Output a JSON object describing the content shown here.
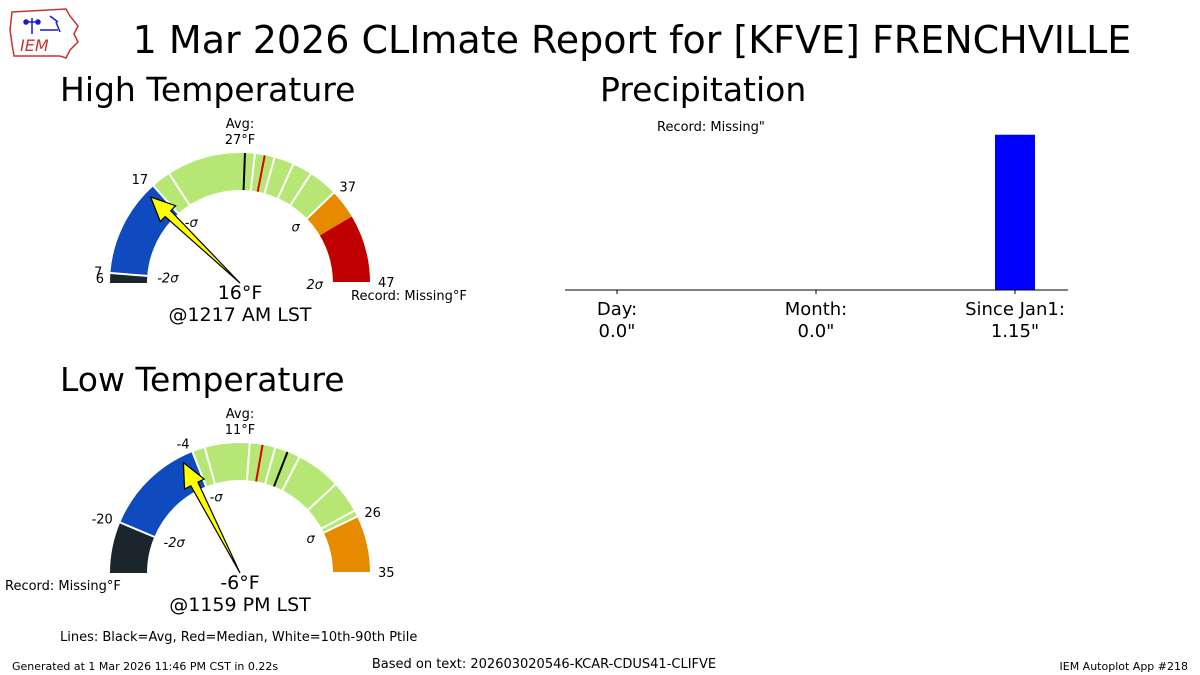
{
  "title": "1 Mar 2026 CLImate Report for [KFVE] FRENCHVILLE",
  "logo_text": "IEM",
  "footer": {
    "generated": "Generated at 1 Mar 2026 11:46 PM CST in 0.22s",
    "source": "Based on text: 202603020546-KCAR-CDUS41-CLIFVE",
    "app": "IEM Autoplot App #218"
  },
  "legend_note": "Lines: Black=Avg, Red=Median, White=10th-90th Ptile",
  "colors": {
    "dark": "#1b262c",
    "blue": "#0f4bbe",
    "green": "#b6e775",
    "orange": "#e68a00",
    "red": "#c00000",
    "bar": "#0000ff",
    "needle": "#ffff00",
    "median": "#e00000"
  },
  "chart_data": [
    {
      "type": "gauge",
      "title": "High Temperature",
      "range": [
        6,
        47
      ],
      "observed": 16,
      "observed_label": "16°F",
      "time_label": "@1217 AM LST",
      "avg_label": "Avg:",
      "avg_value_label": "27°F",
      "avg": 27,
      "median": 29,
      "percentile_lines": [
        19,
        28,
        30,
        32,
        34
      ],
      "record_label": "Record: Missing°F",
      "segments": [
        {
          "from": 6,
          "to": 7,
          "color": "dark"
        },
        {
          "from": 7,
          "to": 17,
          "color": "blue"
        },
        {
          "from": 17,
          "to": 37,
          "color": "green"
        },
        {
          "from": 37,
          "to": 47,
          "color": "orange"
        },
        {
          "from": 40,
          "to": 47,
          "color": "red"
        }
      ],
      "boundaries": [
        {
          "value": 7,
          "label": "7"
        },
        {
          "value": 17,
          "label": "17"
        },
        {
          "value": 37,
          "label": "37"
        },
        {
          "value": 47,
          "label": "47"
        }
      ],
      "sigma_marks": [
        {
          "value": 7,
          "label": "-2σ"
        },
        {
          "value": 17,
          "label": "-σ"
        },
        {
          "value": 37,
          "label": "σ"
        },
        {
          "value": 47,
          "label": "2σ"
        }
      ],
      "min_label": "6"
    },
    {
      "type": "gauge",
      "title": "Low Temperature",
      "range": [
        -28,
        35
      ],
      "observed": -6,
      "observed_label": "-6°F",
      "time_label": "@1159 PM LST",
      "avg_label": "Avg:",
      "avg_value_label": "11°F",
      "avg": 11,
      "median": 7,
      "percentile_lines": [
        -2,
        5,
        9,
        13,
        20,
        25
      ],
      "record_label": "Record: Missing°F",
      "segments": [
        {
          "from": -28,
          "to": -20,
          "color": "dark"
        },
        {
          "from": -20,
          "to": -4,
          "color": "blue"
        },
        {
          "from": -4,
          "to": 26,
          "color": "green"
        },
        {
          "from": 26,
          "to": 35,
          "color": "orange"
        }
      ],
      "boundaries": [
        {
          "value": -20,
          "label": "-20"
        },
        {
          "value": -4,
          "label": "-4"
        },
        {
          "value": 26,
          "label": "26"
        },
        {
          "value": 35,
          "label": "35"
        }
      ],
      "sigma_marks": [
        {
          "value": -20,
          "label": "-2σ"
        },
        {
          "value": -4,
          "label": "-σ"
        },
        {
          "value": 26,
          "label": "σ"
        }
      ]
    },
    {
      "type": "bar",
      "title": "Precipitation",
      "record_label": "Record: Missing\"",
      "categories": [
        "Day:",
        "Month:",
        "Since Jan1:"
      ],
      "value_labels": [
        "0.0\"",
        "0.0\"",
        "1.15\""
      ],
      "values": [
        0.0,
        0.0,
        1.15
      ],
      "ylim": [
        0,
        1.2
      ]
    }
  ]
}
